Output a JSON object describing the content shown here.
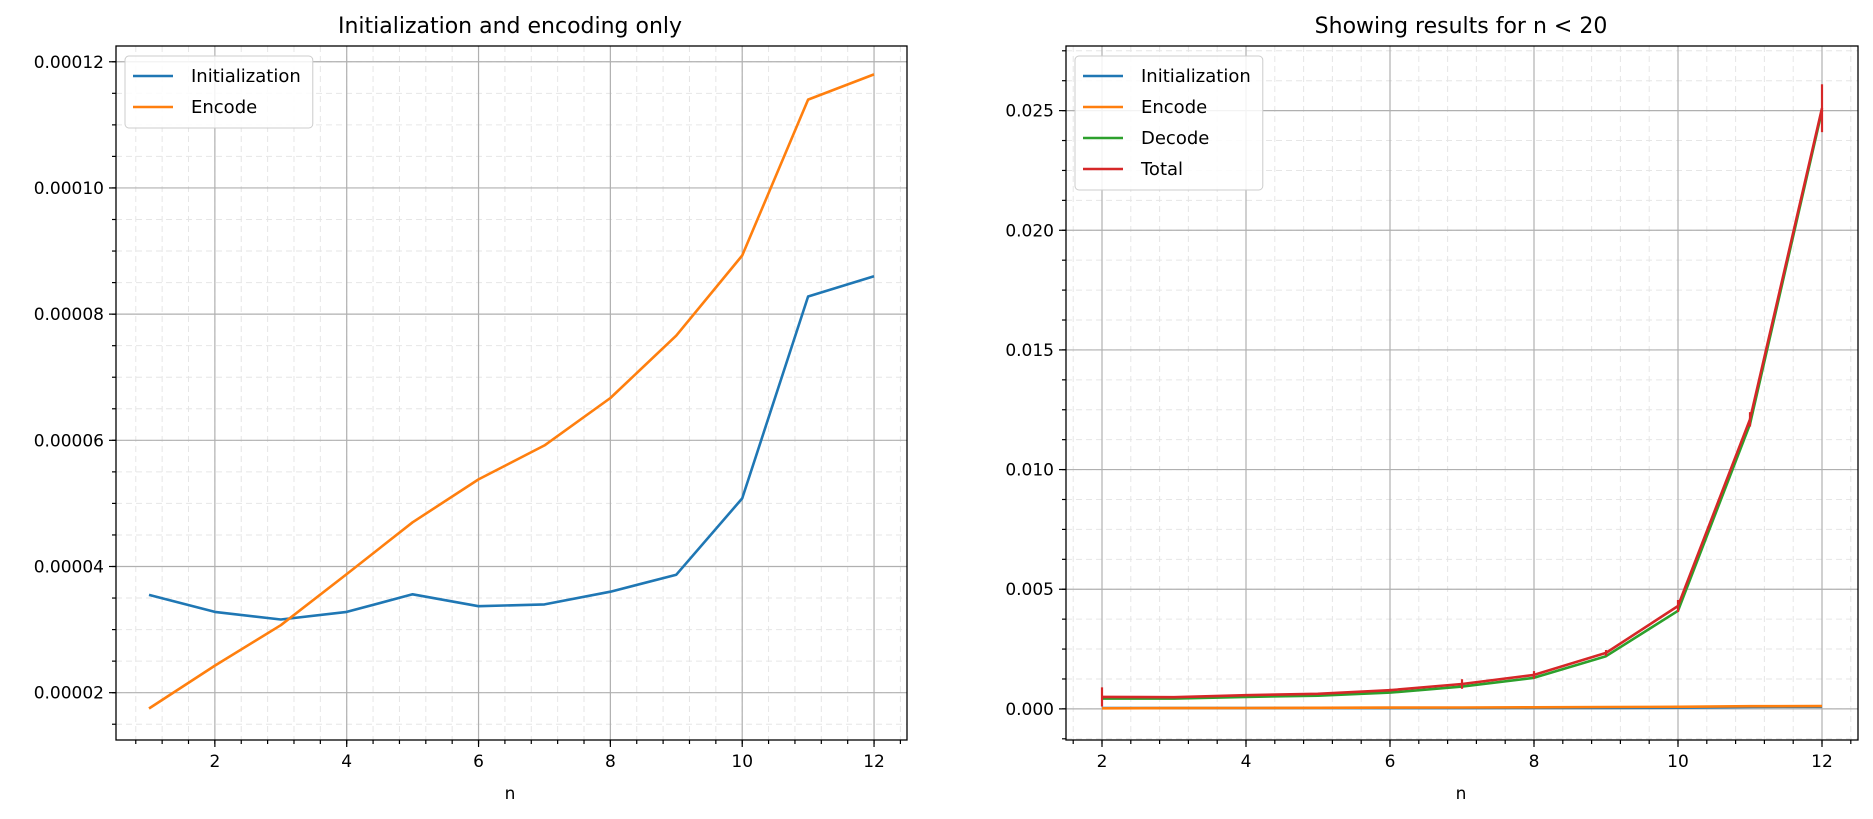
{
  "chart_data": [
    {
      "type": "line",
      "title": "Initialization and encoding only",
      "xlabel": "n",
      "ylabel": "",
      "xlim": [
        0.5,
        12.5
      ],
      "ylim": [
        1.25e-05,
        0.0001225
      ],
      "xticks": [
        2,
        4,
        6,
        8,
        10,
        12
      ],
      "xtick_labels": [
        "2",
        "4",
        "6",
        "8",
        "10",
        "12"
      ],
      "yticks": [
        2e-05,
        4e-05,
        6e-05,
        8e-05,
        0.0001,
        0.00012
      ],
      "ytick_labels": [
        "0.00002",
        "0.00004",
        "0.00006",
        "0.00008",
        "0.00010",
        "0.00012"
      ],
      "grid": true,
      "legend_position": "upper-left",
      "x": [
        1,
        2,
        3,
        4,
        5,
        6,
        7,
        8,
        9,
        10,
        11,
        12
      ],
      "series": [
        {
          "name": "Initialization",
          "color": "#1f77b4",
          "values": [
            3.55e-05,
            3.28e-05,
            3.16e-05,
            3.28e-05,
            3.56e-05,
            3.37e-05,
            3.4e-05,
            3.6e-05,
            3.87e-05,
            5.08e-05,
            8.28e-05,
            8.6e-05
          ]
        },
        {
          "name": "Encode",
          "color": "#ff7f0e",
          "values": [
            1.75e-05,
            2.43e-05,
            3.07e-05,
            3.88e-05,
            4.7e-05,
            5.38e-05,
            5.92e-05,
            6.67e-05,
            7.66e-05,
            8.93e-05,
            0.000114,
            0.000118
          ]
        }
      ]
    },
    {
      "type": "line",
      "title": "Showing results for n < 20",
      "xlabel": "n",
      "ylabel": "",
      "xlim": [
        1.5,
        12.5
      ],
      "ylim": [
        -0.0013,
        0.0277
      ],
      "xticks": [
        2,
        4,
        6,
        8,
        10,
        12
      ],
      "xtick_labels": [
        "2",
        "4",
        "6",
        "8",
        "10",
        "12"
      ],
      "yticks": [
        0,
        0.005,
        0.01,
        0.015,
        0.02,
        0.025
      ],
      "ytick_labels": [
        "0.000",
        "0.005",
        "0.010",
        "0.015",
        "0.020",
        "0.025"
      ],
      "grid": true,
      "legend_position": "upper-left",
      "x": [
        2,
        3,
        4,
        5,
        6,
        7,
        8,
        9,
        10,
        11,
        12
      ],
      "series": [
        {
          "name": "Initialization",
          "color": "#1f77b4",
          "values": [
            3.3e-05,
            3.2e-05,
            3.3e-05,
            3.6e-05,
            3.4e-05,
            3.4e-05,
            3.6e-05,
            3.9e-05,
            5.1e-05,
            8.3e-05,
            8.6e-05
          ]
        },
        {
          "name": "Encode",
          "color": "#ff7f0e",
          "values": [
            2.4e-05,
            3.1e-05,
            3.9e-05,
            4.7e-05,
            5.4e-05,
            5.9e-05,
            6.7e-05,
            7.7e-05,
            8.9e-05,
            0.000114,
            0.000118
          ]
        },
        {
          "name": "Decode",
          "color": "#2ca02c",
          "values": [
            0.00043,
            0.00043,
            0.0005,
            0.00055,
            0.00068,
            0.00093,
            0.0013,
            0.0022,
            0.0041,
            0.0119,
            0.025
          ]
        },
        {
          "name": "Total",
          "color": "#d62728",
          "values": [
            0.0005,
            0.00049,
            0.00057,
            0.00063,
            0.00078,
            0.00104,
            0.00142,
            0.00234,
            0.0043,
            0.0121,
            0.0251
          ],
          "error": [
            0.0004,
            3e-05,
            5e-05,
            4e-05,
            6e-05,
            0.0002,
            0.00016,
            0.00012,
            0.00025,
            0.0003,
            0.001
          ]
        }
      ]
    }
  ]
}
